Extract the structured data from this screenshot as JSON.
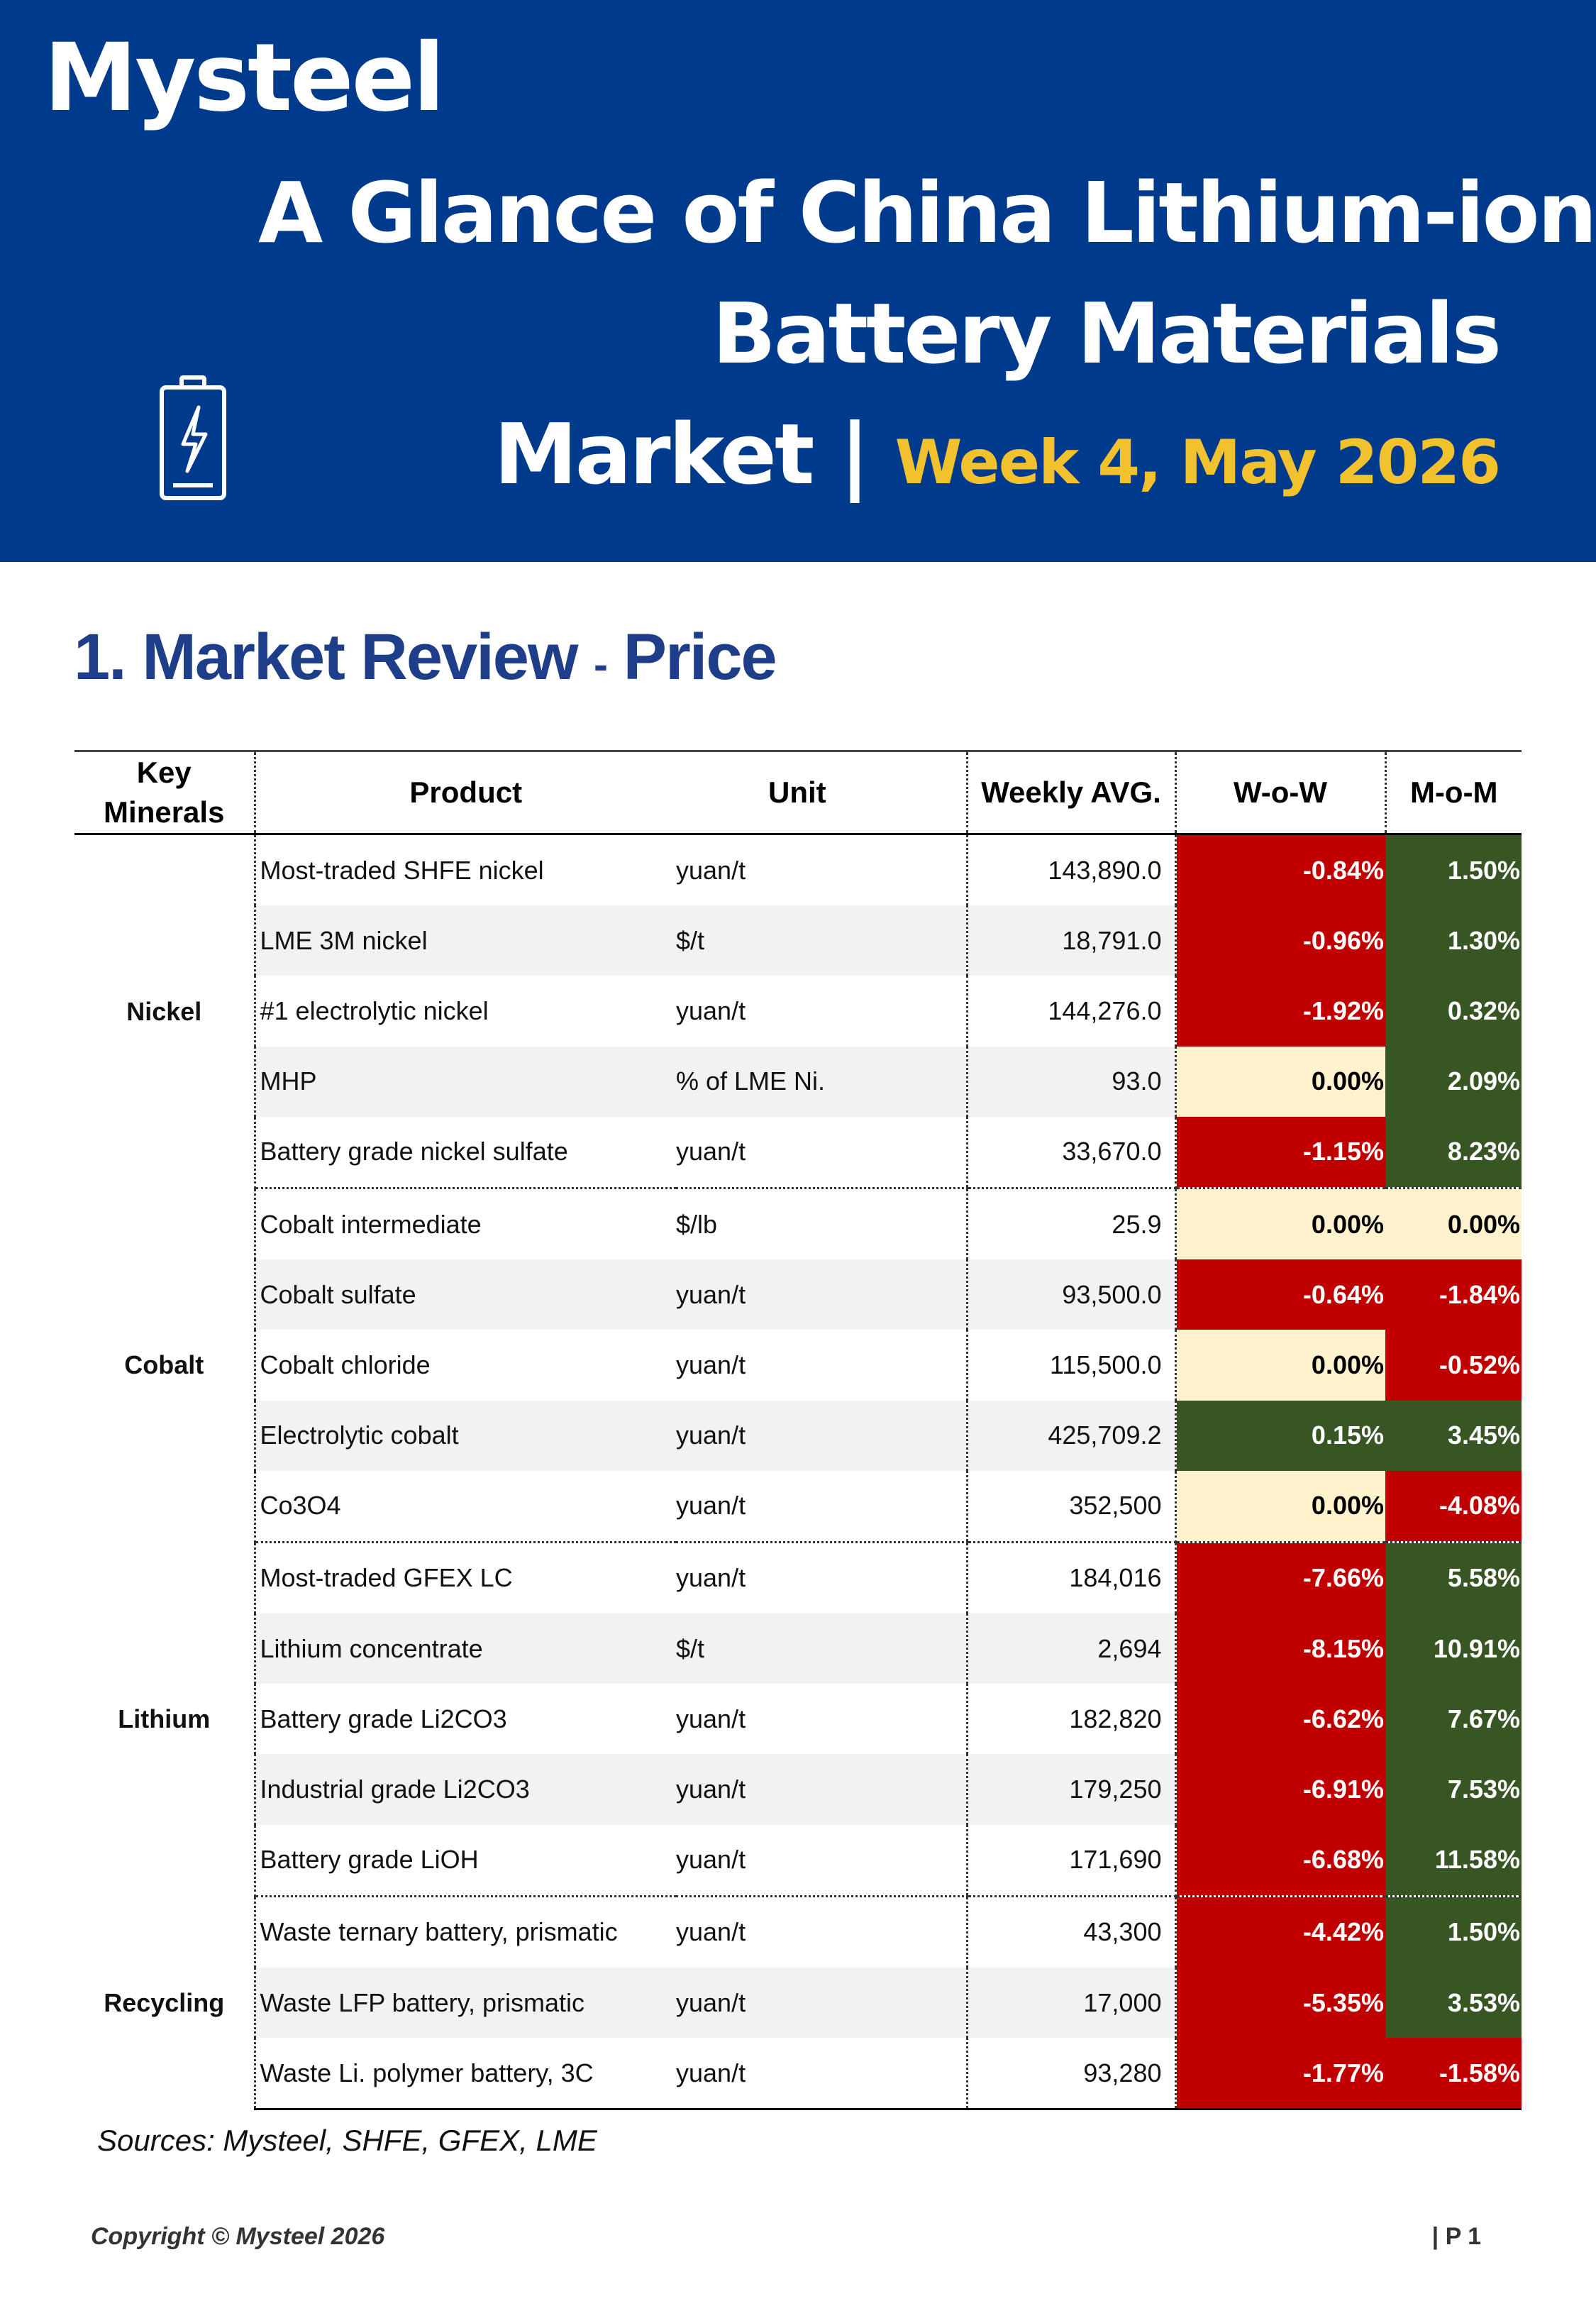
{
  "header": {
    "logo": "Mysteel",
    "title_line1": "A Glance of China Lithium-ion",
    "title_line2": "Battery Materials",
    "title_line3": "Market |",
    "title_week": "Week 4, May 2026",
    "icon": "battery-icon"
  },
  "section": {
    "number": "1. Market Review",
    "dash": "-",
    "topic": "Price"
  },
  "table": {
    "headers": {
      "minerals_1": "Key",
      "minerals_2": "Minerals",
      "product": "Product",
      "unit": "Unit",
      "avg": "Weekly AVG.",
      "wow": "W-o-W",
      "mom": "M-o-M"
    },
    "groups": [
      {
        "name": "Nickel",
        "rows": [
          {
            "product": "Most-traded SHFE nickel",
            "unit": "yuan/t",
            "avg": "143,890.0",
            "wow": "-0.84%",
            "wow_c": "red",
            "mom": "1.50%",
            "mom_c": "green"
          },
          {
            "product": "LME 3M nickel",
            "unit": "$/t",
            "avg": "18,791.0",
            "wow": "-0.96%",
            "wow_c": "red",
            "mom": "1.30%",
            "mom_c": "green"
          },
          {
            "product": "#1 electrolytic nickel",
            "unit": "yuan/t",
            "avg": "144,276.0",
            "wow": "-1.92%",
            "wow_c": "red",
            "mom": "0.32%",
            "mom_c": "green"
          },
          {
            "product": "MHP",
            "unit": "% of LME Ni.",
            "avg": "93.0",
            "wow": "0.00%",
            "wow_c": "neutral",
            "mom": "2.09%",
            "mom_c": "green"
          },
          {
            "product": "Battery grade nickel sulfate",
            "unit": "yuan/t",
            "avg": "33,670.0",
            "wow": "-1.15%",
            "wow_c": "red",
            "mom": "8.23%",
            "mom_c": "green"
          }
        ]
      },
      {
        "name": "Cobalt",
        "rows": [
          {
            "product": "Cobalt intermediate",
            "unit": "$/lb",
            "avg": "25.9",
            "wow": "0.00%",
            "wow_c": "neutral",
            "mom": "0.00%",
            "mom_c": "neutral"
          },
          {
            "product": "Cobalt sulfate",
            "unit": "yuan/t",
            "avg": "93,500.0",
            "wow": "-0.64%",
            "wow_c": "red",
            "mom": "-1.84%",
            "mom_c": "red"
          },
          {
            "product": "Cobalt chloride",
            "unit": "yuan/t",
            "avg": "115,500.0",
            "wow": "0.00%",
            "wow_c": "neutral",
            "mom": "-0.52%",
            "mom_c": "red"
          },
          {
            "product": "Electrolytic cobalt",
            "unit": "yuan/t",
            "avg": "425,709.2",
            "wow": "0.15%",
            "wow_c": "green",
            "mom": "3.45%",
            "mom_c": "green"
          },
          {
            "product": "Co3O4",
            "unit": "yuan/t",
            "avg": "352,500",
            "wow": "0.00%",
            "wow_c": "neutral",
            "mom": "-4.08%",
            "mom_c": "red"
          }
        ]
      },
      {
        "name": "Lithium",
        "rows": [
          {
            "product": "Most-traded GFEX LC",
            "unit": "yuan/t",
            "avg": "184,016",
            "wow": "-7.66%",
            "wow_c": "red",
            "mom": "5.58%",
            "mom_c": "green"
          },
          {
            "product": "Lithium concentrate",
            "unit": "$/t",
            "avg": "2,694",
            "wow": "-8.15%",
            "wow_c": "red",
            "mom": "10.91%",
            "mom_c": "green"
          },
          {
            "product": "Battery grade Li2CO3",
            "unit": "yuan/t",
            "avg": "182,820",
            "wow": "-6.62%",
            "wow_c": "red",
            "mom": "7.67%",
            "mom_c": "green"
          },
          {
            "product": "Industrial grade Li2CO3",
            "unit": "yuan/t",
            "avg": "179,250",
            "wow": "-6.91%",
            "wow_c": "red",
            "mom": "7.53%",
            "mom_c": "green"
          },
          {
            "product": "Battery grade LiOH",
            "unit": "yuan/t",
            "avg": "171,690",
            "wow": "-6.68%",
            "wow_c": "red",
            "mom": "11.58%",
            "mom_c": "green"
          }
        ]
      },
      {
        "name": "Recycling",
        "rows": [
          {
            "product": "Waste ternary battery, prismatic",
            "unit": "yuan/t",
            "avg": "43,300",
            "wow": "-4.42%",
            "wow_c": "red",
            "mom": "1.50%",
            "mom_c": "green"
          },
          {
            "product": "Waste LFP battery, prismatic",
            "unit": "yuan/t",
            "avg": "17,000",
            "wow": "-5.35%",
            "wow_c": "red",
            "mom": "3.53%",
            "mom_c": "green"
          },
          {
            "product": "Waste Li. polymer battery, 3C",
            "unit": "yuan/t",
            "avg": "93,280",
            "wow": "-1.77%",
            "wow_c": "red",
            "mom": "-1.58%",
            "mom_c": "red"
          }
        ]
      }
    ]
  },
  "sources": "Sources: Mysteel, SHFE, GFEX, LME",
  "footer": {
    "copyright": "Copyright © Mysteel 2026",
    "page": "| P 1"
  }
}
